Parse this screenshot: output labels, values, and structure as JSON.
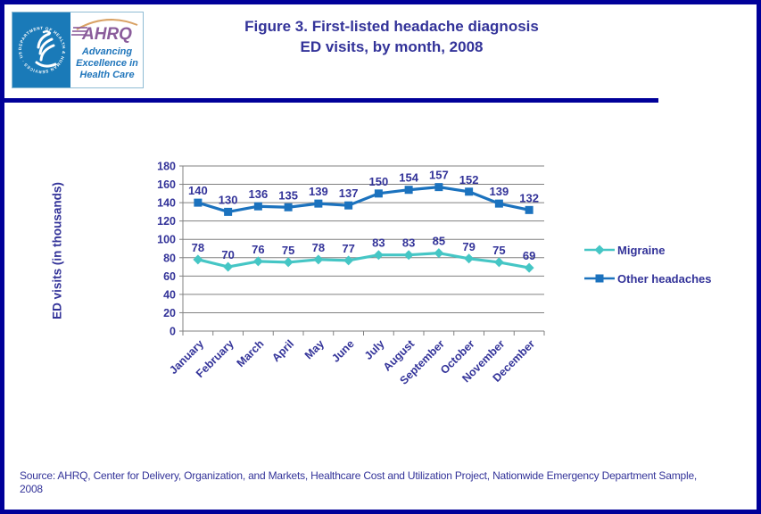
{
  "header": {
    "title_line1": "Figure 3. First-listed headache diagnosis",
    "title_line2": "ED visits, by month, 2008"
  },
  "logo": {
    "seal_text": "DEPARTMENT OF HEALTH & HUMAN SERVICES · USA",
    "acronym": "AHRQ",
    "tagline_line1": "Advancing",
    "tagline_line2": "Excellence in",
    "tagline_line3": "Health Care"
  },
  "chart_data": {
    "type": "line",
    "title": "",
    "xlabel": "",
    "ylabel": "ED visits  (in thousands)",
    "categories": [
      "January",
      "February",
      "March",
      "April",
      "May",
      "June",
      "July",
      "August",
      "September",
      "October",
      "November",
      "December"
    ],
    "series": [
      {
        "name": "Migraine",
        "values": [
          78,
          70,
          76,
          75,
          78,
          77,
          83,
          83,
          85,
          79,
          75,
          69
        ],
        "color": "#45C6C5",
        "marker": "diamond"
      },
      {
        "name": "Other headaches",
        "values": [
          140,
          130,
          136,
          135,
          139,
          137,
          150,
          154,
          157,
          152,
          139,
          132
        ],
        "color": "#1B72BE",
        "marker": "square"
      }
    ],
    "ylim": [
      0,
      180
    ],
    "ytick_step": 20,
    "grid": true,
    "legend_position": "right",
    "data_labels": true,
    "label_color": "#333399",
    "axis_color": "#808080"
  },
  "source": {
    "text": "Source: AHRQ,  Center for Delivery, Organization, and Markets, Healthcare Cost and Utilization Project, Nationwide Emergency Department Sample, 2008"
  },
  "colors": {
    "page_border": "#000099",
    "title_text": "#333399",
    "logo_panel_blue": "#1A7AB8",
    "ahrq_purple": "#8A5C9B",
    "tagline_blue": "#1F75BB",
    "arc_orange": "#D9A265"
  }
}
